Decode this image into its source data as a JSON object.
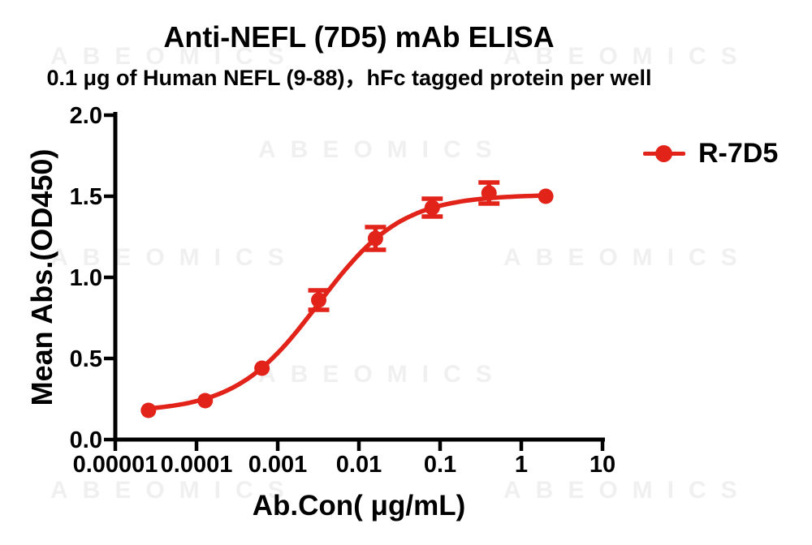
{
  "figure": {
    "watermark": {
      "text": "ABEOMICS",
      "color": "#f0f0f0"
    }
  },
  "chart_data": {
    "type": "line",
    "title": "Anti-NEFL (7D5) mAb ELISA",
    "subtitle": "0.1 μg of Human NEFL (9-88)，hFc tagged protein per well",
    "xlabel": "Ab.Con( μg/mL)",
    "ylabel": "Mean Abs.(OD450)",
    "x_scale": "log10",
    "xlim": [
      1e-05,
      10
    ],
    "ylim": [
      0.0,
      2.0
    ],
    "grid": false,
    "x_ticks": [
      1e-05,
      0.0001,
      0.001,
      0.01,
      0.1,
      1,
      10
    ],
    "x_tick_labels": [
      "0.00001",
      "0.0001",
      "0.001",
      "0.01",
      "0.1",
      "1",
      "10"
    ],
    "y_ticks": [
      0.0,
      0.5,
      1.0,
      1.5,
      2.0
    ],
    "y_tick_labels": [
      "0.0",
      "0.5",
      "1.0",
      "1.5",
      "2.0"
    ],
    "legend_position": "right-top",
    "axis_color": "#000000",
    "series": [
      {
        "name": "R-7D5",
        "color": "#e2231a",
        "marker": "circle",
        "x": [
          2.56e-05,
          0.000128,
          0.00064,
          0.0032,
          0.016,
          0.08,
          0.4,
          2
        ],
        "y": [
          0.18,
          0.24,
          0.44,
          0.86,
          1.24,
          1.43,
          1.52,
          1.5
        ],
        "yerr": [
          0.01,
          0.01,
          0.02,
          0.06,
          0.07,
          0.055,
          0.065,
          0.01
        ],
        "fit": {
          "model": "4PL",
          "bottom": 0.17,
          "top": 1.51,
          "ec50": 0.0032,
          "hill": 0.85
        }
      }
    ]
  }
}
